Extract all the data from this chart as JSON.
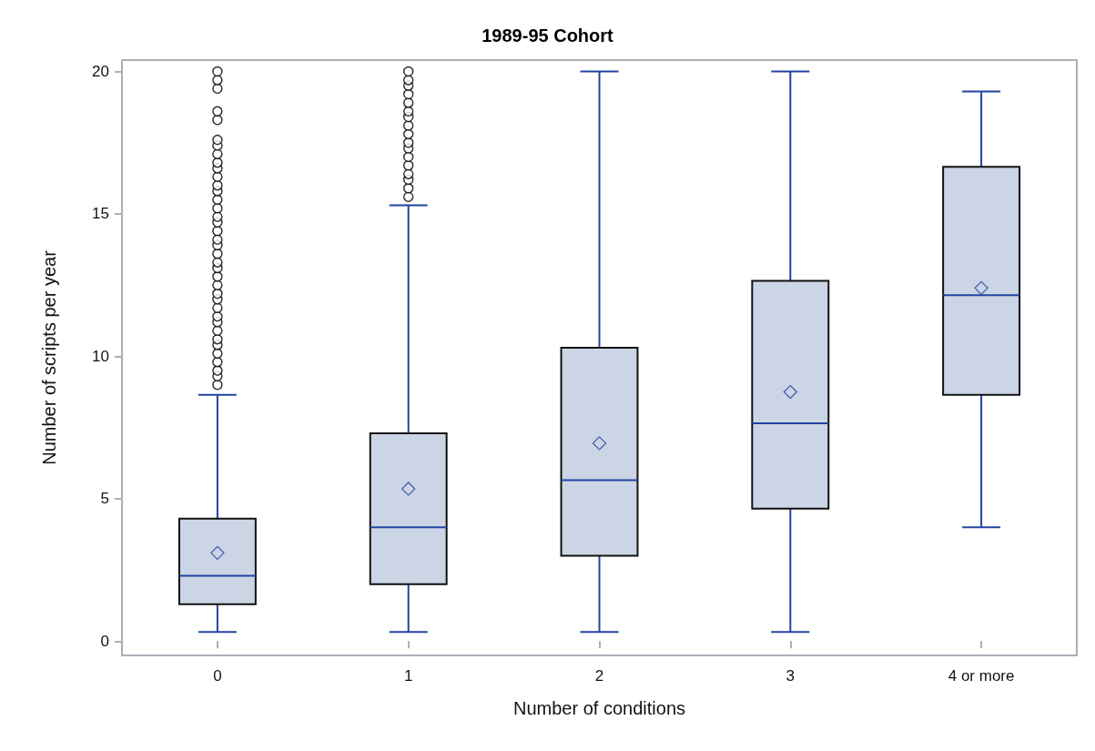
{
  "chart_data": {
    "type": "box",
    "title": "1989-95 Cohort",
    "xlabel": "Number of conditions",
    "ylabel": "Number of scripts per year",
    "categories": [
      "0",
      "1",
      "2",
      "3",
      "4 or more"
    ],
    "color": "#cbd5e5",
    "marker": "diamond",
    "ylim": [
      -0.5,
      20.4
    ],
    "yticks": [
      0,
      5,
      10,
      15,
      20
    ],
    "boxes": [
      {
        "low": 0.32,
        "q1": 1.3,
        "median": 2.3,
        "q3": 4.3,
        "high": 8.65,
        "mean": 3.1,
        "outliers": [
          9.0,
          9.3,
          9.5,
          9.8,
          10.1,
          10.4,
          10.6,
          10.9,
          11.2,
          11.4,
          11.7,
          12.0,
          12.2,
          12.5,
          12.8,
          13.1,
          13.3,
          13.6,
          13.9,
          14.1,
          14.4,
          14.7,
          14.9,
          15.2,
          15.5,
          15.8,
          16.0,
          16.3,
          16.6,
          16.8,
          17.1,
          17.4,
          17.6,
          18.3,
          18.6,
          19.4,
          19.7,
          20.0
        ]
      },
      {
        "low": 0.32,
        "q1": 2.0,
        "median": 4.0,
        "q3": 7.3,
        "high": 15.3,
        "mean": 5.35,
        "outliers": [
          15.6,
          15.9,
          16.2,
          16.4,
          16.7,
          17.0,
          17.3,
          17.5,
          17.8,
          18.1,
          18.4,
          18.6,
          18.9,
          19.2,
          19.5,
          19.7,
          20.0
        ]
      },
      {
        "low": 0.32,
        "q1": 3.0,
        "median": 5.65,
        "q3": 10.3,
        "high": 20.0,
        "mean": 6.95
      },
      {
        "low": 0.32,
        "q1": 4.65,
        "median": 7.65,
        "q3": 12.65,
        "high": 20.0,
        "mean": 8.75
      },
      {
        "low": 4.0,
        "q1": 8.65,
        "median": 12.15,
        "q3": 16.65,
        "high": 19.3,
        "mean": 12.4
      }
    ]
  }
}
